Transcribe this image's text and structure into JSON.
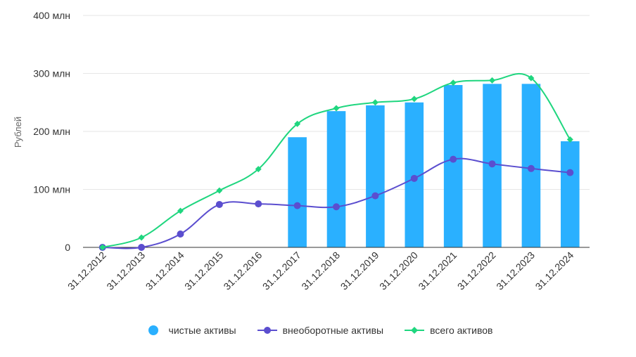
{
  "chart_data": {
    "type": "bar",
    "ylabel": "Рублей",
    "ylim": [
      0,
      400
    ],
    "yticks": [
      "0",
      "100 млн",
      "200 млн",
      "300 млн",
      "400 млн"
    ],
    "ytick_values": [
      0,
      100,
      200,
      300,
      400
    ],
    "categories": [
      "31.12.2012",
      "31.12.2013",
      "31.12.2014",
      "31.12.2015",
      "31.12.2016",
      "31.12.2017",
      "31.12.2018",
      "31.12.2019",
      "31.12.2020",
      "31.12.2021",
      "31.12.2022",
      "31.12.2023",
      "31.12.2024"
    ],
    "grid": true,
    "legend_position": "bottom",
    "series": [
      {
        "name": "чистые активы",
        "kind": "bar",
        "color": "#2ab0ff",
        "values": [
          null,
          null,
          null,
          null,
          null,
          190,
          235,
          245,
          250,
          280,
          282,
          282,
          183
        ]
      },
      {
        "name": "внеоборотные активы",
        "kind": "line",
        "marker": "circle",
        "color": "#5b4ecf",
        "values": [
          0,
          0,
          23,
          74,
          75,
          72,
          70,
          89,
          119,
          152,
          144,
          136,
          129
        ]
      },
      {
        "name": "всего активов",
        "kind": "line",
        "marker": "diamond",
        "color": "#1fd67f",
        "values": [
          0,
          17,
          63,
          98,
          135,
          213,
          240,
          250,
          256,
          284,
          288,
          292,
          186
        ]
      }
    ]
  }
}
